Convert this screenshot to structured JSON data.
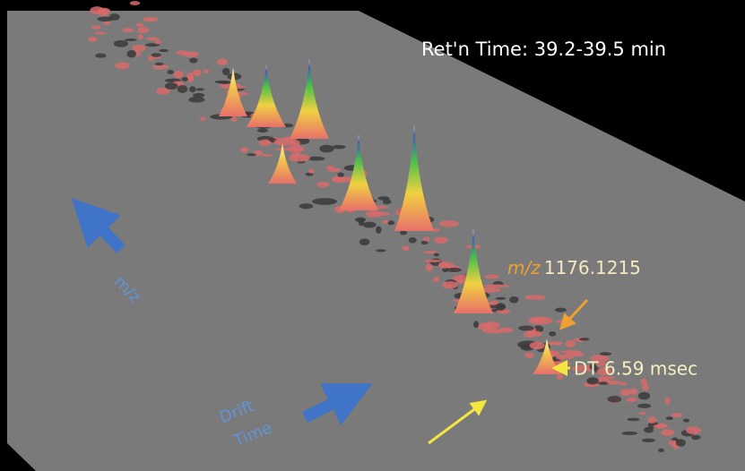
{
  "header": {
    "title": "Ret'n Time: 39.2-39.5 min"
  },
  "annotations": [
    {
      "label_italic": "m/z",
      "label": "1176.1215"
    },
    {
      "label": "DT 6.59 msec"
    }
  ],
  "axes": {
    "mz": "m/z",
    "drift": [
      "Drift",
      "Time"
    ]
  }
}
